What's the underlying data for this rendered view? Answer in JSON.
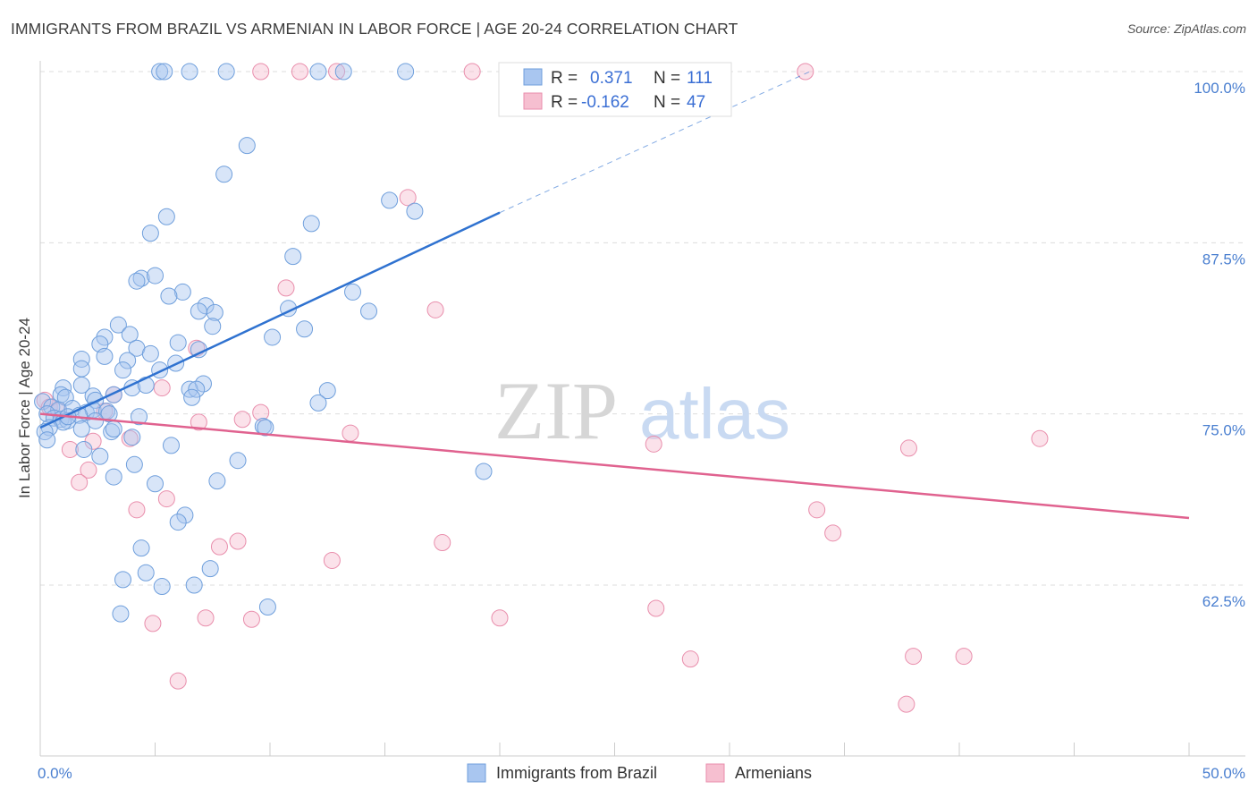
{
  "header": {
    "title": "IMMIGRANTS FROM BRAZIL VS ARMENIAN IN LABOR FORCE | AGE 20-24 CORRELATION CHART",
    "source": "Source: ZipAtlas.com"
  },
  "watermark": {
    "zip": "ZIP",
    "atlas": "atlas"
  },
  "colors": {
    "blue_fill": "#a9c6f0",
    "blue_stroke": "#6f9fdc",
    "blue_line": "#2f72d0",
    "pink_fill": "#f6bfd0",
    "pink_stroke": "#e98eac",
    "pink_line": "#e0628f",
    "tick_text": "#4a7fd0",
    "grid": "#dddddd"
  },
  "chart_data": {
    "type": "scatter",
    "title": "IMMIGRANTS FROM BRAZIL VS ARMENIAN IN LABOR FORCE | AGE 20-24 CORRELATION CHART",
    "xlabel": "",
    "ylabel": "In Labor Force | Age 20-24",
    "xlim": [
      0,
      50
    ],
    "ylim": [
      52,
      101
    ],
    "x_tick_labels": [
      {
        "value": 0,
        "label": "0.0%"
      },
      {
        "value": 50,
        "label": "50.0%"
      }
    ],
    "y_tick_labels": [
      {
        "value": 100,
        "label": "100.0%"
      },
      {
        "value": 87.5,
        "label": "87.5%"
      },
      {
        "value": 75,
        "label": "75.0%"
      },
      {
        "value": 62.5,
        "label": "62.5%"
      }
    ],
    "legend": {
      "position": "top-center",
      "rows": [
        {
          "r_label": "R =",
          "r_value": "0.371",
          "n_label": "N =",
          "n_value": "111"
        },
        {
          "r_label": "R =",
          "r_value": "-0.162",
          "n_label": "N =",
          "n_value": "47"
        }
      ]
    },
    "series": [
      {
        "name": "Immigrants from Brazil",
        "color": "#a9c6f0",
        "r": 0.371,
        "n": 111,
        "trend": {
          "x0": 0,
          "y0": 74.0,
          "x1": 20,
          "y1": 89.7,
          "dashed_to": {
            "x": 33.5,
            "y": 100
          }
        },
        "points": [
          [
            5.2,
            100
          ],
          [
            5.4,
            100
          ],
          [
            6.5,
            100
          ],
          [
            8.1,
            100
          ],
          [
            12.1,
            100
          ],
          [
            13.2,
            100
          ],
          [
            15.9,
            100
          ],
          [
            9.0,
            94.6
          ],
          [
            8.0,
            92.5
          ],
          [
            15.2,
            90.6
          ],
          [
            16.3,
            89.8
          ],
          [
            5.5,
            89.4
          ],
          [
            11.8,
            88.9
          ],
          [
            4.8,
            88.2
          ],
          [
            11.0,
            86.5
          ],
          [
            4.4,
            84.9
          ],
          [
            5.0,
            85.1
          ],
          [
            4.2,
            84.7
          ],
          [
            6.2,
            83.9
          ],
          [
            5.6,
            83.6
          ],
          [
            7.2,
            82.9
          ],
          [
            7.6,
            82.4
          ],
          [
            6.9,
            82.5
          ],
          [
            10.8,
            82.7
          ],
          [
            13.6,
            83.9
          ],
          [
            14.3,
            82.5
          ],
          [
            3.4,
            81.5
          ],
          [
            7.5,
            81.4
          ],
          [
            11.5,
            81.2
          ],
          [
            2.8,
            80.6
          ],
          [
            3.9,
            80.8
          ],
          [
            10.1,
            80.6
          ],
          [
            2.6,
            80.1
          ],
          [
            4.2,
            79.8
          ],
          [
            6.0,
            80.2
          ],
          [
            6.9,
            79.7
          ],
          [
            1.8,
            79.0
          ],
          [
            2.8,
            79.2
          ],
          [
            3.8,
            78.9
          ],
          [
            4.8,
            79.4
          ],
          [
            5.9,
            78.7
          ],
          [
            1.8,
            78.3
          ],
          [
            3.6,
            78.2
          ],
          [
            5.2,
            78.2
          ],
          [
            7.1,
            77.2
          ],
          [
            6.5,
            76.8
          ],
          [
            1.8,
            77.1
          ],
          [
            4.0,
            76.9
          ],
          [
            4.6,
            77.1
          ],
          [
            6.8,
            76.8
          ],
          [
            12.5,
            76.7
          ],
          [
            1.0,
            76.9
          ],
          [
            0.9,
            76.4
          ],
          [
            1.1,
            76.2
          ],
          [
            2.3,
            76.3
          ],
          [
            2.4,
            76.0
          ],
          [
            3.2,
            76.4
          ],
          [
            6.6,
            76.2
          ],
          [
            12.1,
            75.8
          ],
          [
            0.1,
            75.9
          ],
          [
            0.5,
            75.5
          ],
          [
            0.8,
            75.3
          ],
          [
            1.4,
            75.4
          ],
          [
            2.0,
            75.1
          ],
          [
            2.3,
            75.3
          ],
          [
            2.9,
            75.2
          ],
          [
            3.0,
            75.0
          ],
          [
            0.3,
            75.0
          ],
          [
            0.6,
            74.7
          ],
          [
            0.9,
            74.6
          ],
          [
            1.2,
            74.5
          ],
          [
            1.7,
            74.9
          ],
          [
            2.4,
            74.5
          ],
          [
            4.3,
            74.8
          ],
          [
            1.0,
            74.4
          ],
          [
            1.2,
            74.8
          ],
          [
            0.4,
            74.0
          ],
          [
            0.2,
            73.7
          ],
          [
            1.8,
            73.9
          ],
          [
            3.1,
            73.7
          ],
          [
            3.2,
            73.9
          ],
          [
            4.0,
            73.3
          ],
          [
            9.7,
            74.1
          ],
          [
            9.8,
            74.0
          ],
          [
            0.3,
            73.1
          ],
          [
            1.9,
            72.4
          ],
          [
            5.7,
            72.7
          ],
          [
            2.6,
            71.9
          ],
          [
            4.1,
            71.3
          ],
          [
            8.6,
            71.6
          ],
          [
            19.3,
            70.8
          ],
          [
            3.2,
            70.4
          ],
          [
            5.0,
            69.9
          ],
          [
            7.7,
            70.1
          ],
          [
            6.3,
            67.6
          ],
          [
            6.0,
            67.1
          ],
          [
            4.4,
            65.2
          ],
          [
            4.6,
            63.4
          ],
          [
            7.4,
            63.7
          ],
          [
            3.6,
            62.9
          ],
          [
            5.3,
            62.4
          ],
          [
            6.7,
            62.5
          ],
          [
            9.9,
            60.9
          ],
          [
            3.5,
            60.4
          ]
        ]
      },
      {
        "name": "Armenians",
        "color": "#f6bfd0",
        "r": -0.162,
        "n": 47,
        "trend": {
          "x0": 0,
          "y0": 75.0,
          "x1": 50,
          "y1": 67.4
        },
        "points": [
          [
            9.6,
            100
          ],
          [
            11.3,
            100
          ],
          [
            12.9,
            100
          ],
          [
            18.8,
            100
          ],
          [
            33.3,
            100
          ],
          [
            16.0,
            90.8
          ],
          [
            10.7,
            84.2
          ],
          [
            17.2,
            82.6
          ],
          [
            6.8,
            79.8
          ],
          [
            5.3,
            76.9
          ],
          [
            3.2,
            76.4
          ],
          [
            0.2,
            76.0
          ],
          [
            0.4,
            75.5
          ],
          [
            0.8,
            75.2
          ],
          [
            2.8,
            75.2
          ],
          [
            9.6,
            75.1
          ],
          [
            8.8,
            74.6
          ],
          [
            6.9,
            74.4
          ],
          [
            13.5,
            73.6
          ],
          [
            3.9,
            73.2
          ],
          [
            2.3,
            73.0
          ],
          [
            26.7,
            72.8
          ],
          [
            37.8,
            72.5
          ],
          [
            43.5,
            73.2
          ],
          [
            1.3,
            72.4
          ],
          [
            2.1,
            70.9
          ],
          [
            1.7,
            70.0
          ],
          [
            5.5,
            68.8
          ],
          [
            4.2,
            68.0
          ],
          [
            33.8,
            68.0
          ],
          [
            34.5,
            66.3
          ],
          [
            17.5,
            65.6
          ],
          [
            8.6,
            65.7
          ],
          [
            7.8,
            65.3
          ],
          [
            12.7,
            64.3
          ],
          [
            26.8,
            60.8
          ],
          [
            20.0,
            60.1
          ],
          [
            7.2,
            60.1
          ],
          [
            9.2,
            60.0
          ],
          [
            4.9,
            59.7
          ],
          [
            28.3,
            57.1
          ],
          [
            38.0,
            57.3
          ],
          [
            40.2,
            57.3
          ],
          [
            37.7,
            53.8
          ],
          [
            6.0,
            55.5
          ]
        ]
      }
    ]
  },
  "bottom_legend": [
    {
      "label": "Immigrants from Brazil"
    },
    {
      "label": "Armenians"
    }
  ]
}
